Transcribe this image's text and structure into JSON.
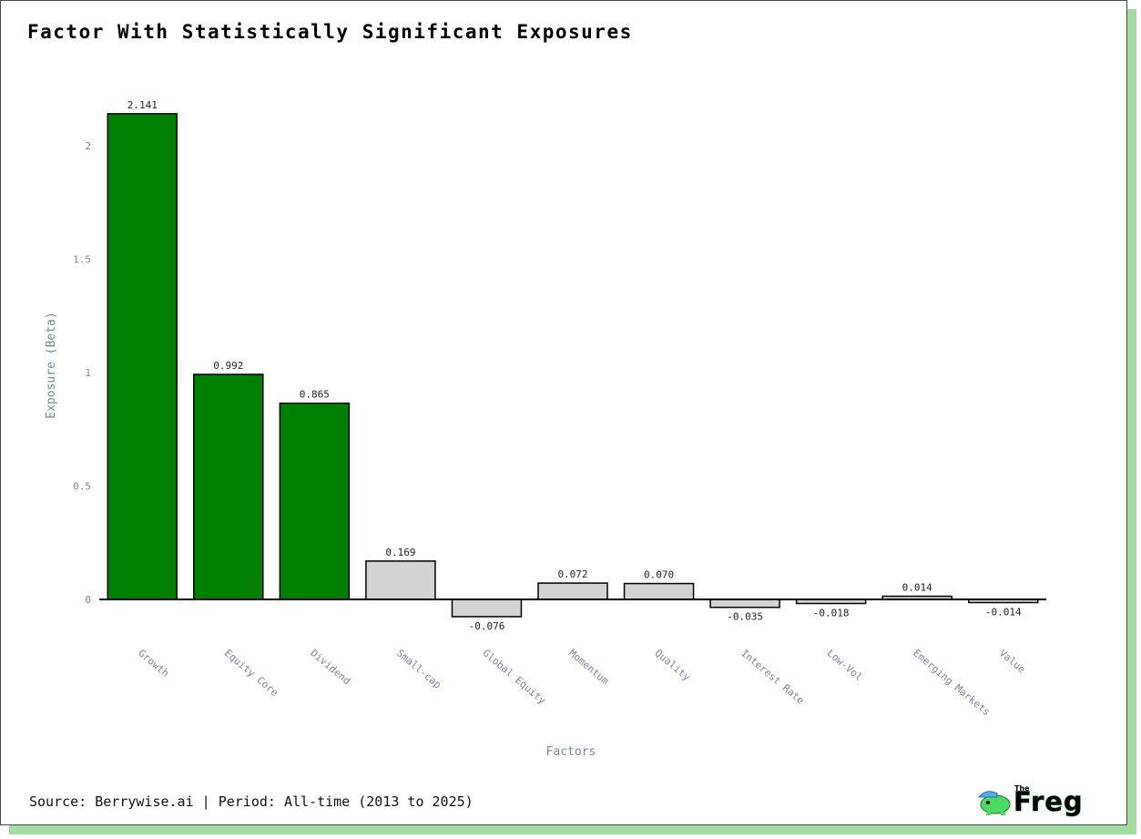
{
  "title": "Factor With Statistically Significant Exposures",
  "source": "Source: Berrywise.ai | Period: All-time (2013 to 2025)",
  "logo": {
    "small": "The",
    "word": "Freg",
    "icon": "frog-mascot-icon"
  },
  "colors": {
    "significant": "#008000",
    "insignificant": "#d3d3d3",
    "bar_border": "#000000",
    "axis_text": "#7a86a3",
    "card_shadow": "#a3dca0"
  },
  "chart_data": {
    "type": "bar",
    "title": "Factor With Statistically Significant Exposures",
    "xlabel": "Factors",
    "ylabel": "Exposure (Beta)",
    "ylim": [
      -0.1,
      2.25
    ],
    "yticks": [
      0,
      0.5,
      1,
      1.5,
      2
    ],
    "ytick_labels": [
      "0",
      "0.5",
      "1",
      "1.5",
      "2"
    ],
    "grid": false,
    "categories": [
      "Growth",
      "Equity Core",
      "Dividend",
      "Small-cap",
      "Global Equity",
      "Momentum",
      "Quality",
      "Interest Rate",
      "Low-Vol",
      "Emerging Markets",
      "Value"
    ],
    "values": [
      2.141,
      0.992,
      0.865,
      0.169,
      -0.076,
      0.072,
      0.07,
      -0.035,
      -0.018,
      0.014,
      -0.014
    ],
    "value_labels": [
      "2.141",
      "0.992",
      "0.865",
      "0.169",
      "-0.076",
      "0.072",
      "0.070",
      "-0.035",
      "-0.018",
      "0.014",
      "-0.014"
    ],
    "significant": [
      true,
      true,
      true,
      false,
      false,
      false,
      false,
      false,
      false,
      false,
      false
    ]
  }
}
